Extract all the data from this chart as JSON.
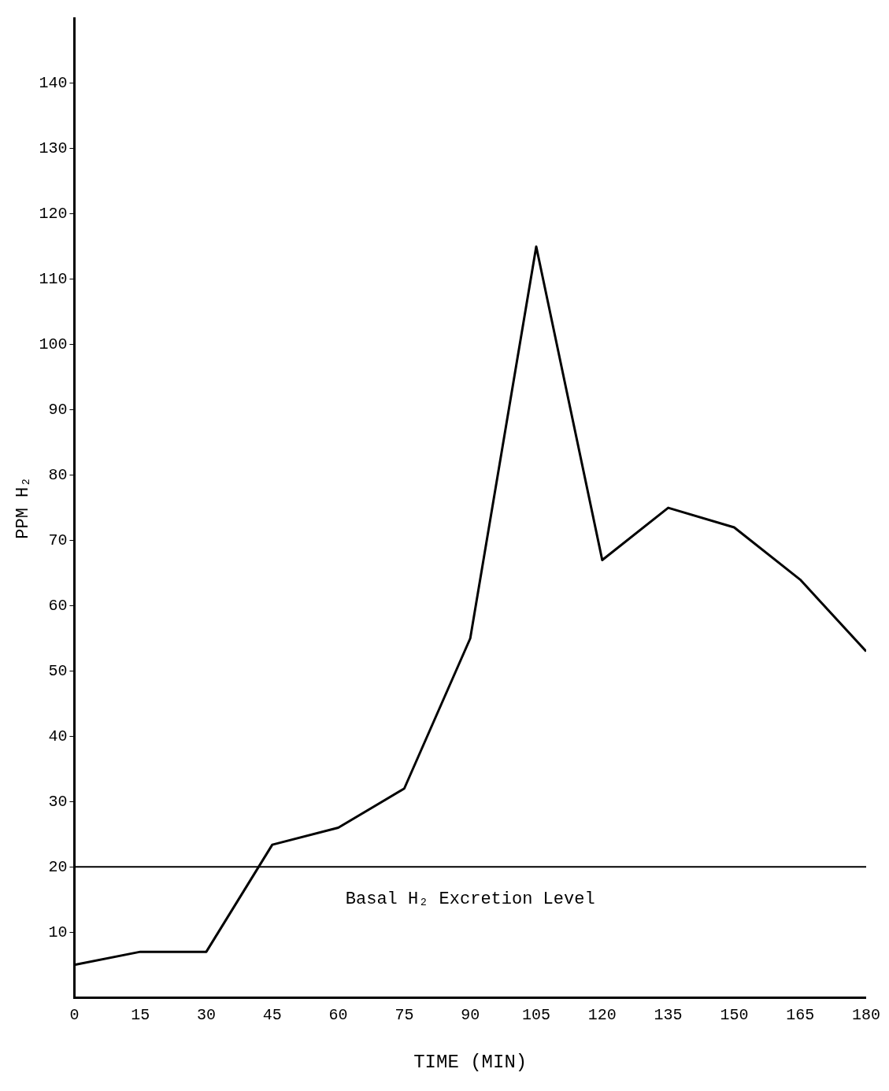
{
  "chart_data": {
    "type": "line",
    "xlabel": "TIME (MIN)",
    "ylabel": "PPM H₂",
    "x": [
      0,
      15,
      30,
      45,
      60,
      75,
      90,
      105,
      120,
      135,
      150,
      165,
      180
    ],
    "series": [
      {
        "color": "#000000",
        "values": [
          5,
          7,
          7,
          23.4,
          26,
          32,
          55,
          115,
          67,
          75,
          72,
          64,
          53
        ]
      }
    ],
    "xlim": [
      0,
      180
    ],
    "xticks": [
      0,
      15,
      30,
      45,
      60,
      75,
      90,
      105,
      120,
      135,
      150,
      165,
      180
    ],
    "ylim": [
      0,
      150
    ],
    "yticks": [
      10,
      20,
      30,
      40,
      50,
      60,
      70,
      80,
      90,
      100,
      110,
      120,
      130,
      140
    ],
    "ref_lines": [
      {
        "axis": "y",
        "value": 20,
        "label": "Basal H₂ Excretion Level",
        "color": "#000000"
      }
    ],
    "grid": false,
    "legend": false,
    "marker": "none",
    "line_style": "solid"
  }
}
